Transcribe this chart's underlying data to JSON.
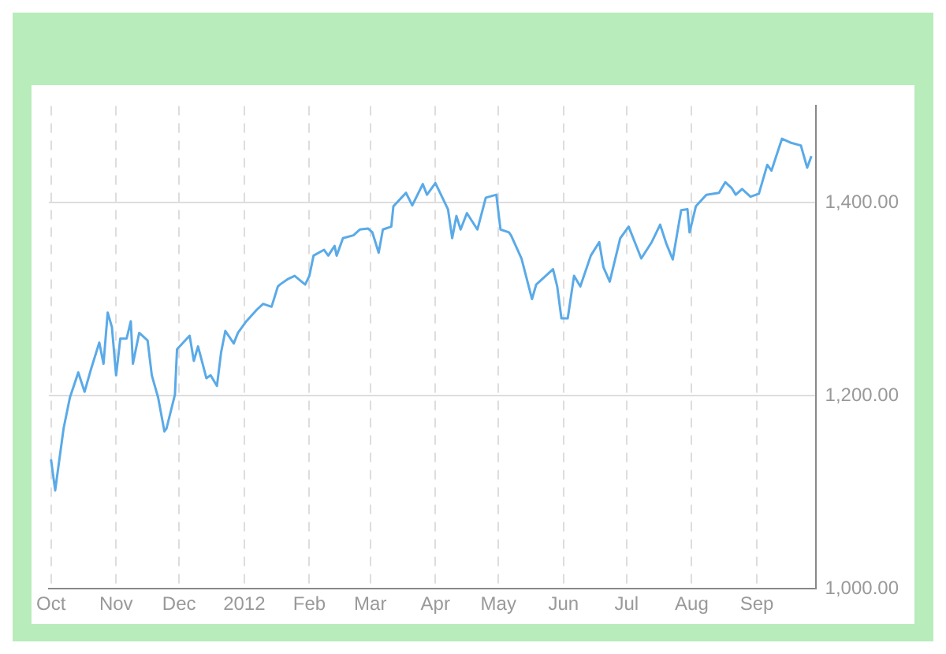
{
  "chart_data": {
    "type": "line",
    "x": [
      "2011-10-01",
      "2011-10-03",
      "2011-10-07",
      "2011-10-10",
      "2011-10-14",
      "2011-10-17",
      "2011-10-20",
      "2011-10-24",
      "2011-10-26",
      "2011-10-28",
      "2011-10-30",
      "2011-11-01",
      "2011-11-03",
      "2011-11-06",
      "2011-11-08",
      "2011-11-09",
      "2011-11-12",
      "2011-11-16",
      "2011-11-18",
      "2011-11-21",
      "2011-11-24",
      "2011-11-25",
      "2011-11-29",
      "2011-11-30",
      "2011-12-06",
      "2011-12-08",
      "2011-12-10",
      "2011-12-14",
      "2011-12-16",
      "2011-12-19",
      "2011-12-21",
      "2011-12-23",
      "2011-12-27",
      "2011-12-29",
      "2012-01-02",
      "2012-01-07",
      "2012-01-10",
      "2012-01-14",
      "2012-01-17",
      "2012-01-18",
      "2012-01-22",
      "2012-01-25",
      "2012-01-30",
      "2012-02-01",
      "2012-02-03",
      "2012-02-08",
      "2012-02-10",
      "2012-02-13",
      "2012-02-14",
      "2012-02-17",
      "2012-02-22",
      "2012-02-25",
      "2012-02-29",
      "2012-03-02",
      "2012-03-05",
      "2012-03-07",
      "2012-03-11",
      "2012-03-12",
      "2012-03-18",
      "2012-03-21",
      "2012-03-26",
      "2012-03-28",
      "2012-04-01",
      "2012-04-07",
      "2012-04-09",
      "2012-04-11",
      "2012-04-13",
      "2012-04-16",
      "2012-04-21",
      "2012-04-25",
      "2012-04-30",
      "2012-05-02",
      "2012-05-06",
      "2012-05-07",
      "2012-05-12",
      "2012-05-17",
      "2012-05-19",
      "2012-05-27",
      "2012-05-29",
      "2012-05-31",
      "2012-06-03",
      "2012-06-06",
      "2012-06-09",
      "2012-06-14",
      "2012-06-18",
      "2012-06-20",
      "2012-06-23",
      "2012-06-28",
      "2012-07-02",
      "2012-07-06",
      "2012-07-08",
      "2012-07-13",
      "2012-07-17",
      "2012-07-20",
      "2012-07-23",
      "2012-07-27",
      "2012-07-30",
      "2012-07-31",
      "2012-08-03",
      "2012-08-08",
      "2012-08-14",
      "2012-08-17",
      "2012-08-20",
      "2012-08-22",
      "2012-08-25",
      "2012-08-29",
      "2012-09-02",
      "2012-09-06",
      "2012-09-08",
      "2012-09-13",
      "2012-09-17",
      "2012-09-22",
      "2012-09-25",
      "2012-09-27"
    ],
    "series": [
      {
        "color": "#5aaae8",
        "values": [
          1134,
          1102,
          1166,
          1198,
          1224,
          1204,
          1227,
          1255,
          1233,
          1286,
          1271,
          1221,
          1259,
          1259,
          1277,
          1233,
          1265,
          1257,
          1221,
          1198,
          1163,
          1166,
          1201,
          1248,
          1262,
          1236,
          1251,
          1218,
          1221,
          1210,
          1245,
          1267,
          1254,
          1265,
          1277,
          1289,
          1295,
          1292,
          1313,
          1315,
          1321,
          1324,
          1315,
          1324,
          1345,
          1351,
          1345,
          1355,
          1345,
          1363,
          1366,
          1372,
          1373,
          1369,
          1348,
          1372,
          1375,
          1396,
          1410,
          1397,
          1419,
          1408,
          1420,
          1393,
          1363,
          1386,
          1372,
          1389,
          1372,
          1405,
          1408,
          1372,
          1369,
          1366,
          1342,
          1300,
          1315,
          1331,
          1313,
          1280,
          1280,
          1324,
          1313,
          1345,
          1359,
          1333,
          1318,
          1363,
          1375,
          1353,
          1342,
          1359,
          1377,
          1357,
          1341,
          1392,
          1393,
          1369,
          1396,
          1408,
          1410,
          1421,
          1415,
          1408,
          1414,
          1406,
          1409,
          1439,
          1433,
          1466,
          1462,
          1459,
          1436,
          1448
        ]
      }
    ],
    "xlim": [
      "2011-09-30",
      "2012-09-29"
    ],
    "xticks": [
      {
        "value": "2011-10-01",
        "label": "Oct"
      },
      {
        "value": "2011-11-01",
        "label": "Nov"
      },
      {
        "value": "2011-12-01",
        "label": "Dec"
      },
      {
        "value": "2012-01-01",
        "label": "2012"
      },
      {
        "value": "2012-02-01",
        "label": "Feb"
      },
      {
        "value": "2012-03-01",
        "label": "Mar"
      },
      {
        "value": "2012-04-01",
        "label": "Apr"
      },
      {
        "value": "2012-05-01",
        "label": "May"
      },
      {
        "value": "2012-06-01",
        "label": "Jun"
      },
      {
        "value": "2012-07-01",
        "label": "Jul"
      },
      {
        "value": "2012-08-01",
        "label": "Aug"
      },
      {
        "value": "2012-09-01",
        "label": "Sep"
      }
    ],
    "ylim": [
      1000,
      1500
    ],
    "yticks": [
      {
        "value": 1000,
        "label": "1,000.00"
      },
      {
        "value": 1200,
        "label": "1,200.00"
      },
      {
        "value": 1400,
        "label": "1,400.00"
      }
    ],
    "grid": true,
    "legend": false,
    "marker": "none",
    "line_style": "solid"
  }
}
